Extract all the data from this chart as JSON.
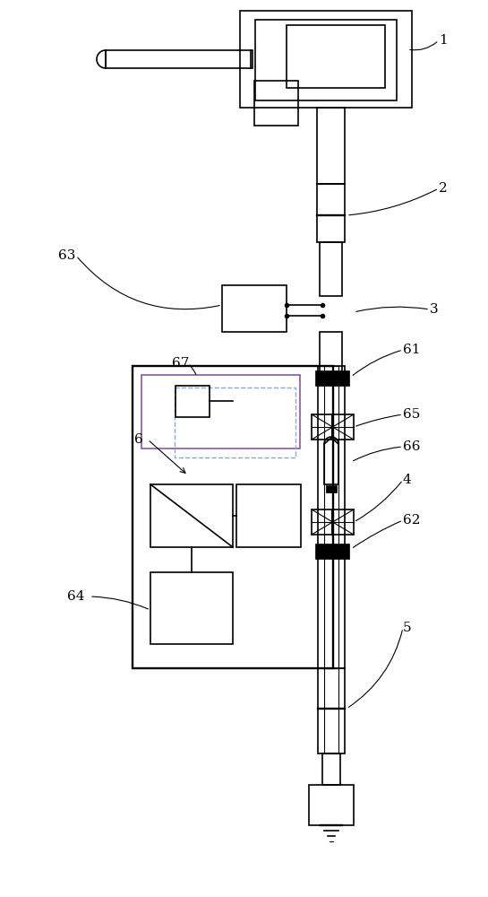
{
  "bg_color": "#ffffff",
  "line_color": "#000000",
  "purple_color": "#8855aa",
  "dashed_color": "#88aacc",
  "fig_width": 5.45,
  "fig_height": 10.0,
  "dpi": 100
}
